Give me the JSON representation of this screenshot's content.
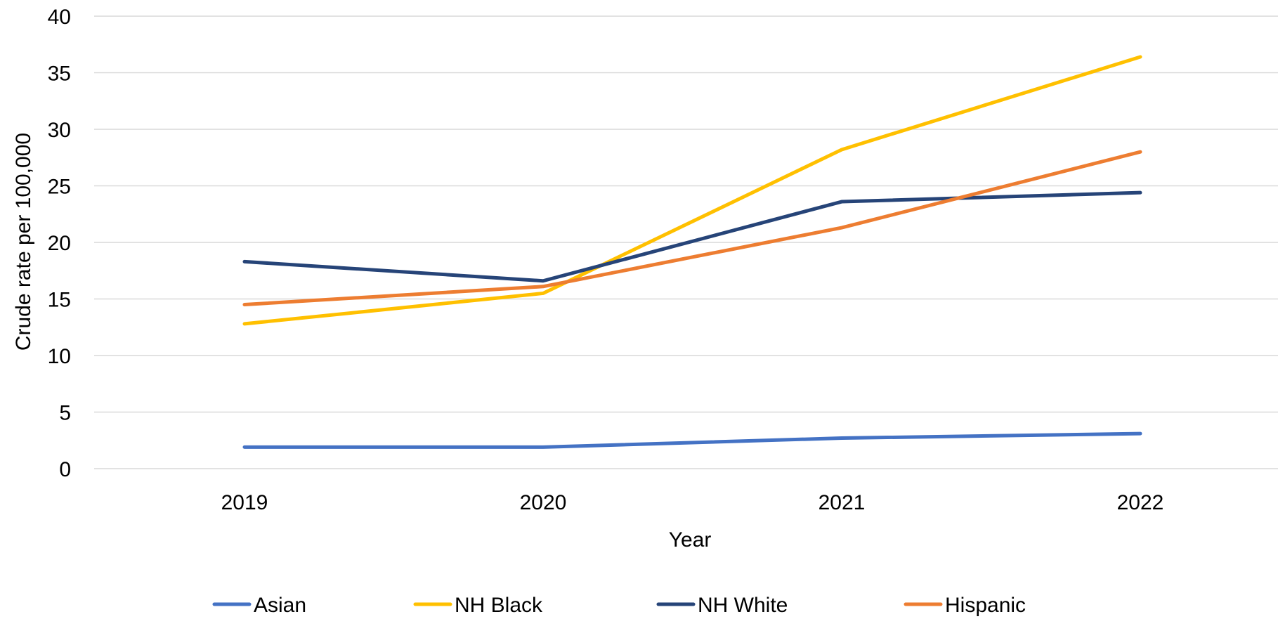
{
  "chart_data": {
    "type": "line",
    "title": "",
    "xlabel": "Year",
    "ylabel": "Crude rate per 100,000",
    "x": [
      "2019",
      "2020",
      "2021",
      "2022"
    ],
    "ylim": [
      0,
      40
    ],
    "yticks": [
      0,
      5,
      10,
      15,
      20,
      25,
      30,
      35,
      40
    ],
    "grid": true,
    "legend_position": "bottom",
    "series": [
      {
        "name": "Asian",
        "color": "#4472c4",
        "values": [
          1.9,
          1.9,
          2.7,
          3.1
        ]
      },
      {
        "name": "NH Black",
        "color": "#ffc000",
        "values": [
          12.8,
          15.5,
          28.2,
          36.4
        ]
      },
      {
        "name": "NH White",
        "color": "#264478",
        "values": [
          18.3,
          16.6,
          23.6,
          24.4
        ]
      },
      {
        "name": "Hispanic",
        "color": "#ed7d31",
        "values": [
          14.5,
          16.1,
          21.3,
          28.0
        ]
      }
    ]
  }
}
